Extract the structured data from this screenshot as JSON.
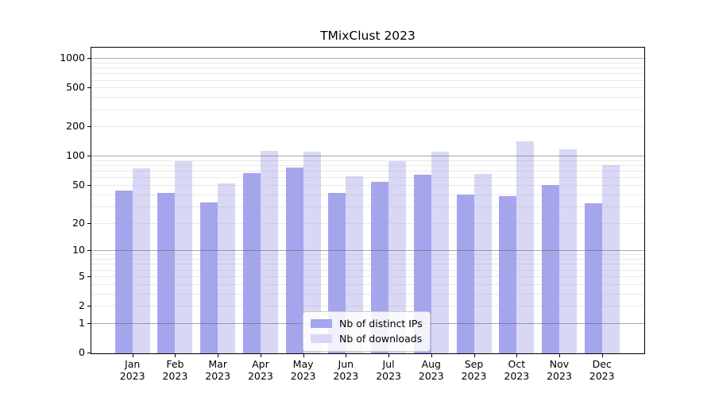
{
  "figure": {
    "title": "TMixClust 2023"
  },
  "chart_data": {
    "type": "bar",
    "title": "TMixClust 2023",
    "categories": [
      "Jan",
      "Feb",
      "Mar",
      "Apr",
      "May",
      "Jun",
      "Jul",
      "Aug",
      "Sep",
      "Oct",
      "Nov",
      "Dec"
    ],
    "category_year": "2023",
    "series": [
      {
        "name": "Nb of distinct IPs",
        "color": "#a5a5ee",
        "values": [
          44,
          41,
          33,
          66,
          76,
          41,
          54,
          64,
          40,
          38,
          50,
          32
        ]
      },
      {
        "name": "Nb of downloads",
        "color": "#d8d8f6",
        "values": [
          75,
          89,
          52,
          113,
          111,
          62,
          88,
          111,
          65,
          140,
          116,
          81
        ]
      }
    ],
    "y_scale": "log1p",
    "ylim": [
      0,
      1200
    ],
    "y_ticks": [
      0,
      1,
      2,
      5,
      10,
      20,
      50,
      100,
      200,
      500,
      1000
    ],
    "major_gridlines": [
      1,
      10,
      100,
      1000
    ],
    "minor_gridlines": [
      2,
      3,
      4,
      6,
      7,
      8,
      9,
      20,
      30,
      40,
      50,
      60,
      70,
      80,
      90,
      200,
      300,
      400,
      500,
      600,
      700,
      800,
      900,
      5
    ],
    "grid": true,
    "legend_position": "lower center",
    "xlabel": "",
    "ylabel": ""
  },
  "colors": {
    "bar_ips": "#a5a5ee",
    "bar_downloads": "#d8d8f6",
    "grid_major": "rgba(96,96,96,0.55)",
    "grid_minor": "rgba(170,170,170,0.27)",
    "axis": "#000000",
    "legend_border": "#cccccc",
    "background": "#ffffff"
  }
}
